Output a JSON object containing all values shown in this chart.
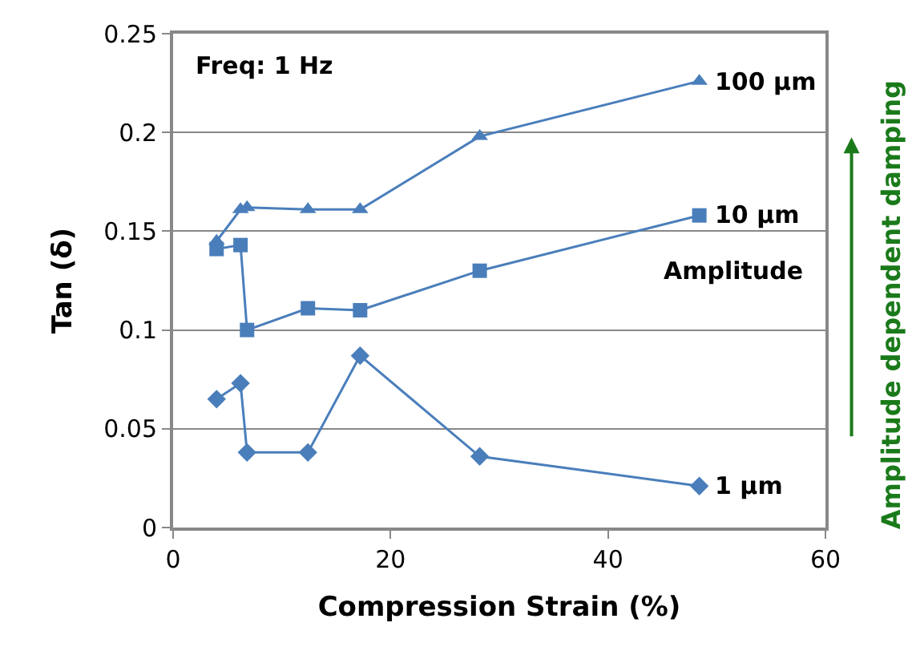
{
  "chart_data": {
    "type": "line",
    "xlabel": "Compression Strain (%)",
    "ylabel": "Tan (δ)",
    "xlim": [
      0,
      60
    ],
    "xticks": [
      0,
      20,
      40,
      60
    ],
    "ylim": [
      0,
      0.25
    ],
    "yticks": [
      0,
      0.05,
      0.1,
      0.15,
      0.2,
      0.25
    ],
    "grid": "y",
    "line_style": "solid",
    "series": [
      {
        "name": "100 μm",
        "color": "#4a7ebb",
        "marker": "triangle",
        "x": [
          4.0,
          6.2,
          6.8,
          12.4,
          17.2,
          28.2,
          48.4
        ],
        "values": [
          0.145,
          0.161,
          0.162,
          0.161,
          0.161,
          0.198,
          0.226
        ]
      },
      {
        "name": "10 μm",
        "color": "#4a7ebb",
        "marker": "square",
        "x": [
          4.0,
          6.2,
          6.8,
          12.4,
          17.2,
          28.2,
          48.4
        ],
        "values": [
          0.141,
          0.143,
          0.1,
          0.111,
          0.11,
          0.13,
          0.158
        ]
      },
      {
        "name": "1 μm",
        "color": "#4a7ebb",
        "marker": "diamond",
        "x": [
          4.0,
          6.2,
          6.8,
          12.4,
          17.2,
          28.2,
          48.4
        ],
        "values": [
          0.065,
          0.073,
          0.038,
          0.038,
          0.087,
          0.036,
          0.021
        ]
      }
    ],
    "annotations": [
      "Freq: 1 Hz",
      "Amplitude",
      "Amplitude dependent damping"
    ]
  }
}
